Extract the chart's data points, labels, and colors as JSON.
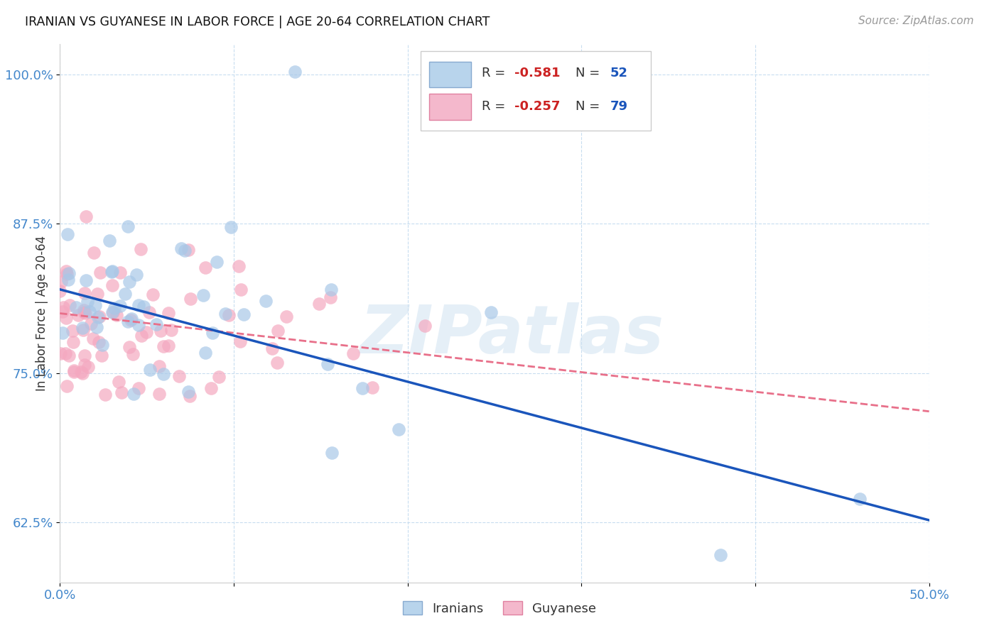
{
  "title": "IRANIAN VS GUYANESE IN LABOR FORCE | AGE 20-64 CORRELATION CHART",
  "source": "Source: ZipAtlas.com",
  "ylabel_text": "In Labor Force | Age 20-64",
  "x_min": 0.0,
  "x_max": 0.5,
  "y_min": 0.575,
  "y_max": 1.025,
  "x_ticks": [
    0.0,
    0.1,
    0.2,
    0.3,
    0.4,
    0.5
  ],
  "x_tick_labels": [
    "0.0%",
    "",
    "",
    "",
    "",
    "50.0%"
  ],
  "y_ticks": [
    0.625,
    0.75,
    0.875,
    1.0
  ],
  "y_tick_labels": [
    "62.5%",
    "75.0%",
    "87.5%",
    "100.0%"
  ],
  "iranians_color": "#a8c8e8",
  "guyanese_color": "#f4a8c0",
  "iranians_line_color": "#1a55bb",
  "guyanese_line_color": "#e8708a",
  "iranians_r": "-0.581",
  "iranians_n": "52",
  "guyanese_r": "-0.257",
  "guyanese_n": "79",
  "watermark": "ZIPatlas",
  "iran_line_x0": 0.0,
  "iran_line_y0": 0.82,
  "iran_line_x1": 0.5,
  "iran_line_y1": 0.627,
  "guy_line_x0": 0.0,
  "guy_line_y0": 0.8,
  "guy_line_x1": 0.5,
  "guy_line_y1": 0.718
}
